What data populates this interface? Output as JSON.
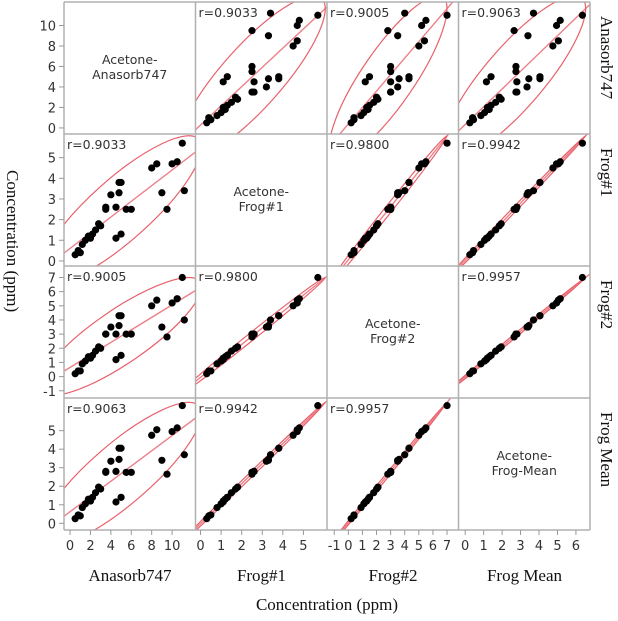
{
  "chart_data": {
    "type": "scatter",
    "subtype": "scatterplot-matrix",
    "xlabel": "Concentration (ppm)",
    "ylabel": "Concentration (ppm)",
    "variables": [
      "Anasorb747",
      "Frog#1",
      "Frog#2",
      "Frog Mean"
    ],
    "diagonal_labels": [
      "Acetone-\nAnasorb747",
      "Acetone-\nFrog#1",
      "Acetone-\nFrog#2",
      "Acetone-\nFrog-Mean"
    ],
    "correlations": [
      [
        "",
        "r=0.9033",
        "r=0.9005",
        "r=0.9063"
      ],
      [
        "r=0.9033",
        "",
        "r=0.9800",
        "r=0.9942"
      ],
      [
        "r=0.9005",
        "r=0.9800",
        "",
        "r=0.9957"
      ],
      [
        "r=0.9063",
        "r=0.9942",
        "r=0.9957",
        ""
      ]
    ],
    "ranges": [
      [
        -0.3,
        12
      ],
      [
        -0.1,
        6
      ],
      [
        -1.3,
        7.6
      ],
      [
        -0.2,
        6.6
      ]
    ],
    "y_ticks": [
      [
        0,
        2,
        4,
        6,
        8,
        10
      ],
      [
        0,
        1,
        2,
        3,
        4,
        5
      ],
      [
        -1,
        0,
        1,
        2,
        3,
        4,
        5,
        6,
        7
      ],
      [
        0,
        1,
        2,
        3,
        4,
        5
      ]
    ],
    "x_ticks": [
      [
        0,
        2,
        4,
        6,
        8,
        10
      ],
      [
        0,
        1,
        2,
        3,
        4,
        5
      ],
      [
        -1,
        0,
        1,
        2,
        3,
        4,
        5,
        6,
        7
      ],
      [
        0,
        1,
        2,
        3,
        4,
        5,
        6
      ]
    ],
    "ellipse": "95% density ellipse with fit line",
    "samples": {
      "Anasorb747": [
        0.5,
        0.8,
        1.0,
        1.2,
        1.5,
        1.8,
        2.0,
        2.2,
        2.5,
        2.8,
        3.0,
        3.5,
        4.0,
        4.5,
        4.8,
        5.0,
        5.5,
        6.0,
        4.5,
        5.0,
        8.0,
        8.5,
        9.0,
        9.5,
        10.0,
        10.5,
        11.0,
        11.2,
        4.8,
        3.5
      ],
      "Frog#1": [
        0.3,
        0.5,
        0.4,
        0.8,
        1.0,
        1.2,
        1.1,
        1.3,
        1.5,
        1.8,
        1.7,
        2.5,
        3.2,
        2.6,
        3.3,
        3.8,
        2.5,
        2.5,
        1.1,
        1.3,
        4.5,
        4.7,
        3.3,
        2.5,
        4.7,
        4.8,
        5.7,
        3.4,
        3.8,
        2.6
      ],
      "Frog#2": [
        0.2,
        0.4,
        0.4,
        0.9,
        1.1,
        1.4,
        1.3,
        1.5,
        1.8,
        2.1,
        2.0,
        3.0,
        3.5,
        3.0,
        3.6,
        4.3,
        3.0,
        3.0,
        1.2,
        1.5,
        5.0,
        5.4,
        3.5,
        2.8,
        5.2,
        5.5,
        7.0,
        4.0,
        4.3,
        3.0
      ],
      "Frog Mean": [
        0.25,
        0.45,
        0.4,
        0.85,
        1.05,
        1.3,
        1.2,
        1.4,
        1.65,
        1.95,
        1.85,
        2.75,
        3.35,
        2.8,
        3.45,
        4.05,
        2.75,
        2.75,
        1.15,
        1.4,
        4.75,
        5.05,
        3.4,
        2.65,
        4.95,
        5.15,
        6.35,
        3.7,
        4.05,
        2.8
      ]
    },
    "colors": {
      "points": "#000000",
      "ellipse": "#e8606a",
      "grid": "#b0b0b0"
    }
  }
}
